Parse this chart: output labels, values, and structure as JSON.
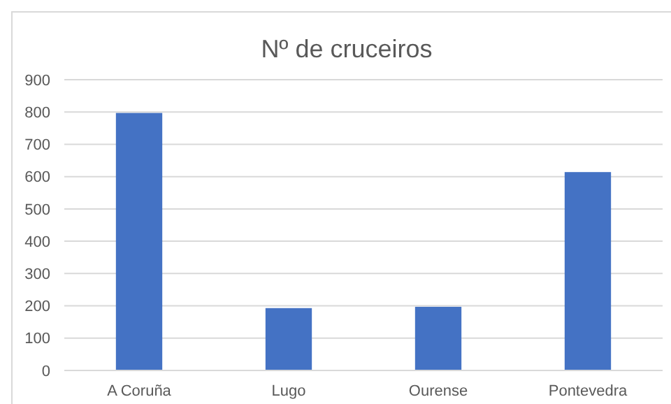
{
  "chart_data": {
    "type": "bar",
    "title": "Nº de cruceiros",
    "categories": [
      "A Coruña",
      "Lugo",
      "Ourense",
      "Pontevedra"
    ],
    "values": [
      797,
      193,
      197,
      614
    ],
    "color": "#4472c4",
    "ylim": [
      0,
      900
    ],
    "yticks": [
      0,
      100,
      200,
      300,
      400,
      500,
      600,
      700,
      800,
      900
    ],
    "grid": "y"
  }
}
